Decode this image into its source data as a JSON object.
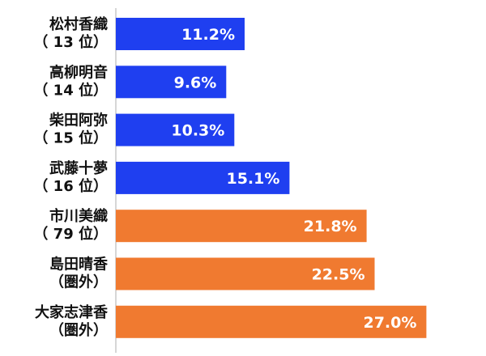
{
  "chart_data": {
    "type": "bar",
    "orientation": "horizontal",
    "categories": [
      [
        "松村香織",
        "（ 13 位）"
      ],
      [
        "高柳明音",
        "（ 14 位）"
      ],
      [
        "柴田阿弥",
        "（ 15 位）"
      ],
      [
        "武藤十夢",
        "（ 16 位）"
      ],
      [
        "市川美織",
        "（ 79 位）"
      ],
      [
        "島田晴香",
        "（圏外）"
      ],
      [
        "大家志津香",
        "（圏外）"
      ]
    ],
    "values": [
      11.2,
      9.6,
      10.3,
      15.1,
      21.8,
      22.5,
      27.0
    ],
    "data_labels": [
      "11.2%",
      "9.6%",
      "10.3%",
      "15.1%",
      "21.8%",
      "22.5%",
      "27.0%"
    ],
    "bar_colors": [
      "#1f3ff0",
      "#1f3ff0",
      "#1f3ff0",
      "#1f3ff0",
      "#f07a30",
      "#f07a30",
      "#f07a30"
    ],
    "xlim": [
      0,
      30
    ],
    "title": "",
    "xlabel": "",
    "ylabel": "",
    "grid": false,
    "legend": false
  },
  "colors": {
    "axis": "#c8c8c8",
    "label_text": "#111111",
    "value_text": "#ffffff"
  }
}
